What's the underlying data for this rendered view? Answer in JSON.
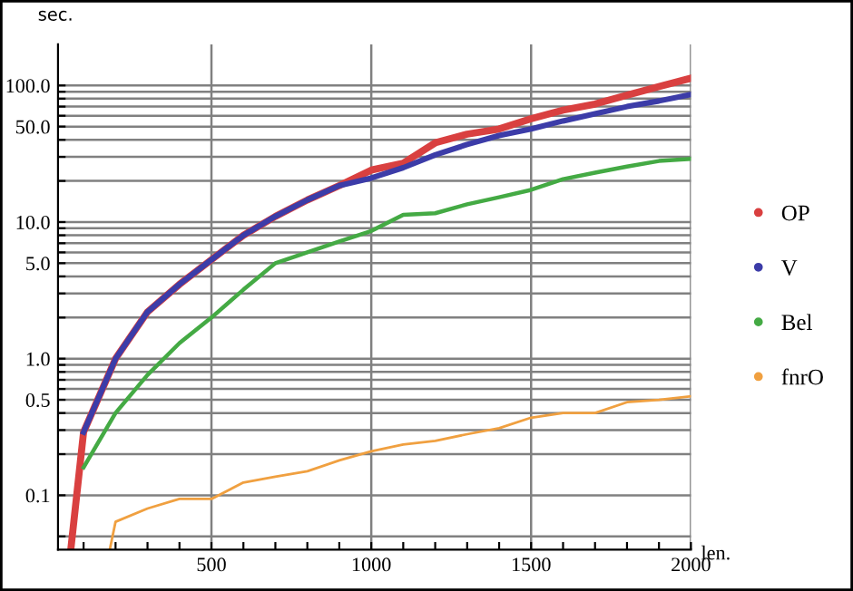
{
  "chart_data": {
    "type": "line",
    "xlabel": "len.",
    "ylabel": "sec.",
    "log": "y",
    "grid": true,
    "legend": "right",
    "marker": "none",
    "xlim": [
      20,
      2000
    ],
    "ylim": [
      0.04,
      200
    ],
    "xticks": [
      {
        "value": 100,
        "label": null
      },
      {
        "value": 200,
        "label": null
      },
      {
        "value": 300,
        "label": null
      },
      {
        "value": 400,
        "label": null
      },
      500,
      {
        "value": 600,
        "label": null
      },
      {
        "value": 700,
        "label": null
      },
      {
        "value": 800,
        "label": null
      },
      {
        "value": 900,
        "label": null
      },
      1000,
      {
        "value": 1100,
        "label": null
      },
      {
        "value": 1200,
        "label": null
      },
      {
        "value": 1300,
        "label": null
      },
      {
        "value": 1400,
        "label": null
      },
      1500,
      {
        "value": 1600,
        "label": null
      },
      {
        "value": 1700,
        "label": null
      },
      {
        "value": 1800,
        "label": null
      },
      {
        "value": 1900,
        "label": null
      },
      2000
    ],
    "yticks": [
      {
        "value": 0.05,
        "label": null
      },
      {
        "value": 0.1,
        "label": "0.1"
      },
      {
        "value": 0.2,
        "label": null
      },
      {
        "value": 0.3,
        "label": null
      },
      {
        "value": 0.4,
        "label": null
      },
      {
        "value": 0.5,
        "label": "0.5"
      },
      {
        "value": 0.6,
        "label": null
      },
      {
        "value": 0.7,
        "label": null
      },
      {
        "value": 0.8,
        "label": null
      },
      {
        "value": 0.9,
        "label": null
      },
      {
        "value": 1,
        "label": "1.0"
      },
      {
        "value": 2,
        "label": null
      },
      {
        "value": 3,
        "label": null
      },
      {
        "value": 4,
        "label": null
      },
      {
        "value": 5,
        "label": "5.0"
      },
      {
        "value": 6,
        "label": null
      },
      {
        "value": 7,
        "label": null
      },
      {
        "value": 8,
        "label": null
      },
      {
        "value": 9,
        "label": null
      },
      {
        "value": 10,
        "label": "10.0"
      },
      {
        "value": 20,
        "label": null
      },
      {
        "value": 30,
        "label": null
      },
      {
        "value": 40,
        "label": null
      },
      {
        "value": 50,
        "label": "50.0"
      },
      {
        "value": 60,
        "label": null
      },
      {
        "value": 70,
        "label": null
      },
      {
        "value": 80,
        "label": null
      },
      {
        "value": 90,
        "label": null
      },
      {
        "value": 100,
        "label": "100.0"
      }
    ],
    "series": [
      {
        "name": "OP",
        "color": "#d94040",
        "x": [
          60,
          100,
          200,
          300,
          400,
          500,
          600,
          700,
          800,
          900,
          1000,
          1100,
          1200,
          1300,
          1400,
          1500,
          1600,
          1700,
          1800,
          1900,
          2000
        ],
        "values": [
          0.04,
          0.29,
          1.0,
          2.2,
          3.5,
          5.3,
          8,
          11,
          14.5,
          18.5,
          24,
          27,
          38,
          44,
          48,
          57,
          66,
          73,
          85,
          98,
          113
        ]
      },
      {
        "name": "V",
        "color": "#3c3ca8",
        "x": [
          100,
          200,
          300,
          400,
          500,
          600,
          700,
          800,
          900,
          1000,
          1100,
          1200,
          1300,
          1400,
          1500,
          1600,
          1700,
          1800,
          1900,
          2000
        ],
        "values": [
          0.29,
          1.0,
          2.2,
          3.5,
          5.3,
          8,
          11,
          14.5,
          18.5,
          21,
          25,
          31,
          37,
          43,
          48,
          55,
          62,
          70,
          77,
          86
        ]
      },
      {
        "name": "Bel",
        "color": "#44aa44",
        "x": [
          100,
          200,
          300,
          400,
          500,
          600,
          700,
          800,
          900,
          1000,
          1100,
          1200,
          1300,
          1400,
          1500,
          1600,
          1700,
          1800,
          1900,
          2000
        ],
        "values": [
          0.16,
          0.4,
          0.76,
          1.3,
          2.0,
          3.2,
          5.0,
          6.0,
          7.2,
          8.6,
          11.3,
          11.6,
          13.5,
          15.2,
          17.2,
          20.6,
          23,
          25.5,
          28,
          29
        ]
      },
      {
        "name": "fnrO",
        "color": "#f0a040",
        "x": [
          182,
          200,
          300,
          400,
          500,
          600,
          700,
          800,
          900,
          1000,
          1100,
          1200,
          1300,
          1400,
          1500,
          1600,
          1700,
          1800,
          1900,
          2000
        ],
        "values": [
          0.04,
          0.064,
          0.08,
          0.094,
          0.094,
          0.124,
          0.137,
          0.15,
          0.18,
          0.21,
          0.235,
          0.25,
          0.28,
          0.31,
          0.37,
          0.4,
          0.4,
          0.48,
          0.5,
          0.53
        ]
      }
    ]
  }
}
